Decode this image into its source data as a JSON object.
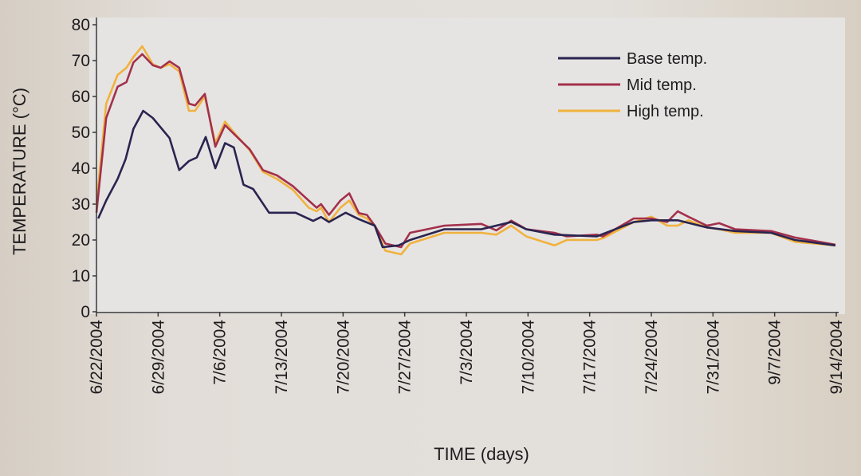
{
  "chart_data": {
    "type": "line",
    "title": "",
    "xlabel": "TIME (days)",
    "ylabel": "TEMPERATURE (°C)",
    "ylim": [
      0,
      80
    ],
    "xlim": [
      0,
      84
    ],
    "yticks": [
      0,
      10,
      20,
      30,
      40,
      50,
      60,
      70,
      80
    ],
    "xtick_labels": [
      "6/22/2004",
      "6/29/2004",
      "7/6/2004",
      "7/13/2004",
      "7/20/2004",
      "7/27/2004",
      "7/3/2004",
      "7/10/2004",
      "7/17/2004",
      "7/24/2004",
      "7/31/2004",
      "9/7/2004",
      "9/14/2004"
    ],
    "x_unit_note": "x values are days since 6/22/2004",
    "grid": false,
    "legend_position": "top-right",
    "series": [
      {
        "name": "Base temp.",
        "color": "#2a2450",
        "x": [
          0.2,
          1.1,
          2.4,
          3.3,
          4.2,
          5.3,
          6.4,
          8.3,
          9.4,
          10.5,
          11.4,
          12.4,
          13.5,
          14.6,
          15.6,
          16.7,
          17.8,
          19.6,
          21.4,
          22.6,
          24.6,
          25.5,
          26.4,
          28.3,
          29.8,
          31.6,
          32.5,
          34.3,
          35.6,
          39.5,
          43.7,
          47.1,
          48.8,
          52,
          56.8,
          61,
          63,
          66,
          69.3,
          72.5,
          76.6,
          79.3,
          83.9
        ],
        "y": [
          26,
          31,
          37,
          42.5,
          51,
          56,
          54,
          48.4,
          39.5,
          42,
          43,
          48.7,
          40,
          47,
          45.8,
          35.4,
          34.2,
          27.6,
          27.6,
          27.6,
          25.3,
          26.4,
          25,
          27.6,
          25.8,
          24,
          18,
          18.5,
          20,
          23,
          23,
          25,
          23,
          21.5,
          21,
          25,
          25.5,
          25.5,
          23.5,
          22.5,
          22,
          20,
          18.5
        ]
      },
      {
        "name": "Mid temp.",
        "color": "#a3304c",
        "x": [
          0,
          1.1,
          2.4,
          3.4,
          4.2,
          5.2,
          6.4,
          7.3,
          8.3,
          9.4,
          10.5,
          11.2,
          12.3,
          13.5,
          14.6,
          15.6,
          17.4,
          18.9,
          20.5,
          22.3,
          24.1,
          25,
          25.5,
          26.4,
          27.7,
          28.7,
          29.8,
          30.7,
          31.6,
          32.8,
          34.6,
          35.6,
          39.5,
          43.7,
          45.4,
          47.1,
          48.8,
          52,
          53.4,
          56.8,
          57.5,
          61,
          63,
          64.8,
          66,
          67.2,
          69.3,
          70.7,
          72.5,
          76.6,
          79.3,
          83.9
        ],
        "y": [
          27.6,
          54,
          62.7,
          64,
          69.5,
          71.8,
          68.7,
          68,
          69.8,
          68,
          58,
          57.5,
          60.7,
          46,
          52,
          49.6,
          45.3,
          39.5,
          38,
          35,
          31,
          29,
          30,
          27,
          31,
          33,
          27.5,
          27,
          24,
          19,
          18,
          22,
          24,
          24.5,
          22.7,
          25.4,
          23,
          22,
          21,
          21.5,
          21,
          26,
          26,
          25,
          28,
          26.5,
          24,
          24.7,
          23,
          22.5,
          20.7,
          18.7
        ]
      },
      {
        "name": "High temp.",
        "color": "#f0b23e",
        "x": [
          0,
          1.1,
          2.4,
          3.4,
          4.2,
          5.2,
          6.4,
          7.3,
          8.3,
          9.4,
          10.5,
          11.2,
          12.3,
          13.5,
          14.6,
          15.6,
          17.4,
          18.9,
          20.5,
          22.3,
          24.1,
          25,
          25.5,
          26.4,
          27.7,
          28.7,
          29.8,
          30.7,
          31.6,
          32.8,
          34.6,
          35.6,
          39.5,
          43.7,
          45.4,
          47.1,
          48.8,
          52,
          53.4,
          56.8,
          57.5,
          61,
          63,
          64.8,
          66,
          67.2,
          69.3,
          70.7,
          72.5,
          76.6,
          79.3,
          83.9
        ],
        "y": [
          30,
          58,
          66,
          68,
          71,
          74,
          69,
          68,
          69,
          67,
          56,
          56,
          60,
          47,
          53,
          50,
          45,
          39,
          37,
          34,
          29,
          28,
          29,
          25,
          29,
          31,
          27,
          26,
          24,
          17,
          16,
          19,
          22,
          22,
          21.5,
          24,
          21,
          18.5,
          20,
          20,
          20.5,
          25,
          26.5,
          24,
          24,
          25.5,
          23.5,
          23,
          22,
          22,
          19.5,
          18.5
        ]
      }
    ]
  }
}
